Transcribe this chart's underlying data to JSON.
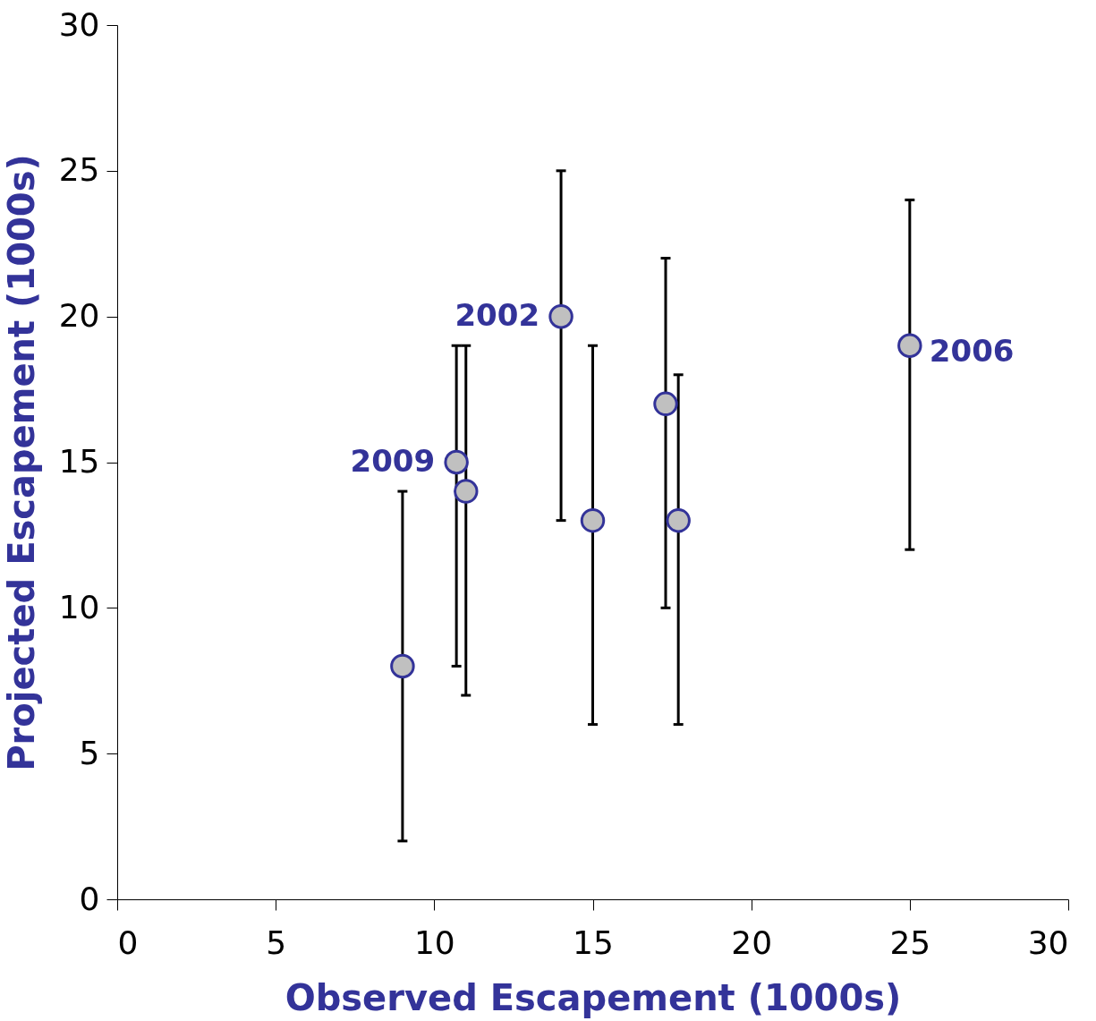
{
  "chart_data": {
    "type": "scatter",
    "xlabel": "Observed Escapement (1000s)",
    "ylabel": "Projected Escapement (1000s)",
    "x": [
      9.0,
      10.7,
      11.0,
      14.0,
      15.0,
      17.3,
      17.7,
      25.0
    ],
    "series": [
      {
        "color": "#c0c0c0",
        "values": [
          8,
          15,
          14,
          20,
          13,
          17,
          13,
          19
        ],
        "errors": [
          [
            2,
            14
          ],
          [
            8,
            19
          ],
          [
            7,
            19
          ],
          [
            13,
            25
          ],
          [
            6,
            19
          ],
          [
            10,
            22
          ],
          [
            6,
            18
          ],
          [
            12,
            24
          ]
        ]
      }
    ],
    "xlim": [
      0,
      30
    ],
    "ylim": [
      0,
      30
    ],
    "xticks": [
      0,
      5,
      10,
      15,
      20,
      25,
      30
    ],
    "yticks": [
      0,
      5,
      10,
      15,
      20,
      25,
      30
    ],
    "grid": false,
    "marker": "circle",
    "annotations": [
      {
        "text": "2009",
        "x": 10.7,
        "y": 15
      },
      {
        "text": "2002",
        "x": 14.0,
        "y": 20
      },
      {
        "text": "2006",
        "x": 25.0,
        "y": 19
      }
    ]
  }
}
